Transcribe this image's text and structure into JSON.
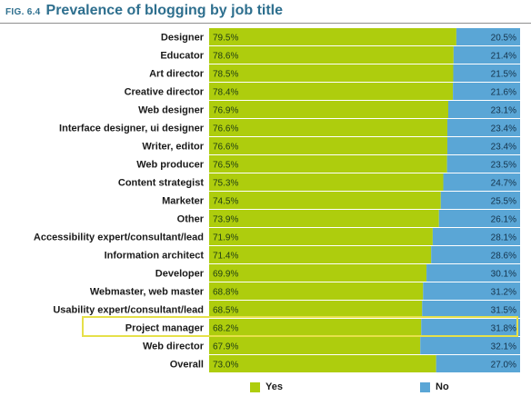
{
  "header": {
    "fig_num": "FIG. 6.4",
    "title": "Prevalence of blogging by job title"
  },
  "colors": {
    "yes": "#aecd0d",
    "no": "#5aa6d6",
    "title": "#2e6f8e",
    "highlight": "#e6e04a"
  },
  "chart_data": {
    "type": "bar",
    "orientation": "horizontal",
    "stacked": true,
    "title": "Prevalence of blogging by job title",
    "categories": [
      "Designer",
      "Educator",
      "Art director",
      "Creative director",
      "Web designer",
      "Interface designer, ui designer",
      "Writer, editor",
      "Web producer",
      "Content strategist",
      "Marketer",
      "Other",
      "Accessibility expert/consultant/lead",
      "Information architect",
      "Developer",
      "Webmaster, web master",
      "Usability expert/consultant/lead",
      "Project manager",
      "Web director",
      "Overall"
    ],
    "series": [
      {
        "name": "Yes",
        "values": [
          79.5,
          78.6,
          78.5,
          78.4,
          76.9,
          76.6,
          76.6,
          76.5,
          75.3,
          74.5,
          73.9,
          71.9,
          71.4,
          69.9,
          68.8,
          68.5,
          68.2,
          67.9,
          73.0
        ]
      },
      {
        "name": "No",
        "values": [
          20.5,
          21.4,
          21.5,
          21.6,
          23.1,
          23.4,
          23.4,
          23.5,
          24.7,
          25.5,
          26.1,
          28.1,
          28.6,
          30.1,
          31.2,
          31.5,
          31.8,
          32.1,
          27.0
        ]
      }
    ],
    "value_labels": {
      "yes": [
        "79.5%",
        "78.6%",
        "78.5%",
        "78.4%",
        "76.9%",
        "76.6%",
        "76.6%",
        "76.5%",
        "75.3%",
        "74.5%",
        "73.9%",
        "71.9%",
        "71.4%",
        "69.9%",
        "68.8%",
        "68.5%",
        "68.2%",
        "67.9%",
        "73.0%"
      ],
      "no": [
        "20.5%",
        "21.4%",
        "21.5%",
        "21.6%",
        "23.1%",
        "23.4%",
        "23.4%",
        "23.5%",
        "24.7%",
        "25.5%",
        "26.1%",
        "28.1%",
        "28.6%",
        "30.1%",
        "31.2%",
        "31.5%",
        "31.8%",
        "32.1%",
        "27.0%"
      ]
    },
    "xlim": [
      0,
      100
    ],
    "highlighted_category": "Project manager",
    "legend": {
      "placement": "bottom",
      "items": [
        "Yes",
        "No"
      ]
    }
  }
}
